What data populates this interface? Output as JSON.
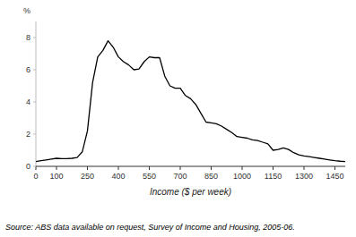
{
  "chart_data": {
    "type": "line",
    "x": [
      0,
      25,
      50,
      75,
      100,
      125,
      150,
      175,
      200,
      225,
      250,
      275,
      300,
      325,
      350,
      375,
      400,
      425,
      450,
      475,
      500,
      525,
      550,
      575,
      600,
      625,
      650,
      675,
      700,
      725,
      750,
      775,
      800,
      825,
      850,
      875,
      900,
      925,
      950,
      975,
      1000,
      1025,
      1050,
      1075,
      1100,
      1125,
      1150,
      1175,
      1200,
      1225,
      1250,
      1275,
      1300,
      1325,
      1350,
      1375,
      1400,
      1425,
      1450,
      1475,
      1500
    ],
    "values": [
      0.3,
      0.35,
      0.4,
      0.45,
      0.5,
      0.48,
      0.48,
      0.5,
      0.55,
      0.9,
      2.2,
      5.2,
      6.8,
      7.2,
      7.8,
      7.4,
      6.8,
      6.5,
      6.3,
      6.0,
      6.05,
      6.5,
      6.8,
      6.75,
      6.75,
      5.6,
      5.0,
      4.85,
      4.85,
      4.4,
      4.2,
      3.85,
      3.3,
      2.75,
      2.7,
      2.65,
      2.5,
      2.3,
      2.1,
      1.85,
      1.8,
      1.75,
      1.65,
      1.6,
      1.5,
      1.4,
      1.0,
      1.05,
      1.15,
      1.05,
      0.85,
      0.72,
      0.65,
      0.6,
      0.55,
      0.5,
      0.45,
      0.4,
      0.35,
      0.32,
      0.3
    ],
    "color": "#000000",
    "x_label": "Income ($ per week)",
    "y_label": "%",
    "xlim": [
      0,
      1500
    ],
    "ylim": [
      0,
      9
    ],
    "xticks": [
      0,
      100,
      250,
      400,
      550,
      700,
      850,
      1000,
      1150,
      1300,
      1450
    ],
    "yticks": [
      0,
      2,
      4,
      6,
      8
    ],
    "grid": false,
    "annotations": [
      "Source: ABS data available on request,  Survey of Income and Housing,  2005-06."
    ]
  }
}
